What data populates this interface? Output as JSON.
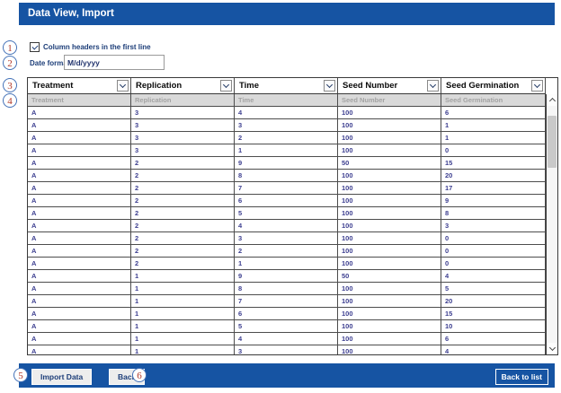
{
  "title_bar": {
    "title": "Data View, Import"
  },
  "annotations": {
    "labels": [
      "1",
      "2",
      "3",
      "4",
      "5",
      "6"
    ]
  },
  "options": {
    "column_headers_checkbox_label": "Column headers in the first line",
    "column_headers_checked": true,
    "date_format_label": "Date format:",
    "date_format_value": "M/d/yyyy"
  },
  "mapping_columns": [
    "Treatment",
    "Replication",
    "Time",
    "Seed Number",
    "Seed Germination"
  ],
  "grid": {
    "hint_row": [
      "Treatment",
      "Replication",
      "Time",
      "Seed Number",
      "Seed Germination"
    ],
    "rows": [
      [
        "A",
        "3",
        "4",
        "100",
        "6"
      ],
      [
        "A",
        "3",
        "3",
        "100",
        "1"
      ],
      [
        "A",
        "3",
        "2",
        "100",
        "1"
      ],
      [
        "A",
        "3",
        "1",
        "100",
        "0"
      ],
      [
        "A",
        "2",
        "9",
        "50",
        "15"
      ],
      [
        "A",
        "2",
        "8",
        "100",
        "20"
      ],
      [
        "A",
        "2",
        "7",
        "100",
        "17"
      ],
      [
        "A",
        "2",
        "6",
        "100",
        "9"
      ],
      [
        "A",
        "2",
        "5",
        "100",
        "8"
      ],
      [
        "A",
        "2",
        "4",
        "100",
        "3"
      ],
      [
        "A",
        "2",
        "3",
        "100",
        "0"
      ],
      [
        "A",
        "2",
        "2",
        "100",
        "0"
      ],
      [
        "A",
        "2",
        "1",
        "100",
        "0"
      ],
      [
        "A",
        "1",
        "9",
        "50",
        "4"
      ],
      [
        "A",
        "1",
        "8",
        "100",
        "5"
      ],
      [
        "A",
        "1",
        "7",
        "100",
        "20"
      ],
      [
        "A",
        "1",
        "6",
        "100",
        "15"
      ],
      [
        "A",
        "1",
        "5",
        "100",
        "10"
      ],
      [
        "A",
        "1",
        "4",
        "100",
        "6"
      ],
      [
        "A",
        "1",
        "3",
        "100",
        "4"
      ]
    ]
  },
  "footer": {
    "import_button": "Import Data",
    "back_button": "Back",
    "back_to_list_button": "Back to list"
  },
  "colors": {
    "accent_blue": "#1654a3",
    "annotation_red": "#b03727",
    "data_text": "#3d3f90",
    "hint_row_bg": "#d9d9d9"
  }
}
